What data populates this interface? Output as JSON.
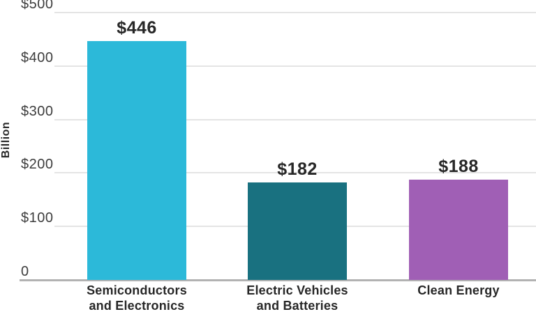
{
  "chart_data": {
    "type": "bar",
    "title": "",
    "xlabel": "",
    "ylabel": "Billion",
    "ylim": [
      0,
      500
    ],
    "grid": true,
    "legend": false,
    "yticks": [
      {
        "value": 0,
        "label": "0"
      },
      {
        "value": 100,
        "label": "$100"
      },
      {
        "value": 200,
        "label": "$200"
      },
      {
        "value": 300,
        "label": "$300"
      },
      {
        "value": 400,
        "label": "$400"
      },
      {
        "value": 500,
        "label": "$500"
      }
    ],
    "categories": [
      "Semiconductors\nand Electronics",
      "Electric Vehicles\nand Batteries",
      "Clean Energy"
    ],
    "values": [
      446,
      182,
      188
    ],
    "value_labels": [
      "$446",
      "$182",
      "$188"
    ],
    "bar_colors": [
      "#2cb9d9",
      "#197180",
      "#a05fb5"
    ]
  },
  "style": {
    "background": "#ffffff",
    "gridline_color": "#e4e4e4",
    "axis_line_color": "#b2b2b2",
    "tick_label_color": "#3d3d3d",
    "value_label_color": "#272727",
    "category_label_color": "#272727"
  }
}
